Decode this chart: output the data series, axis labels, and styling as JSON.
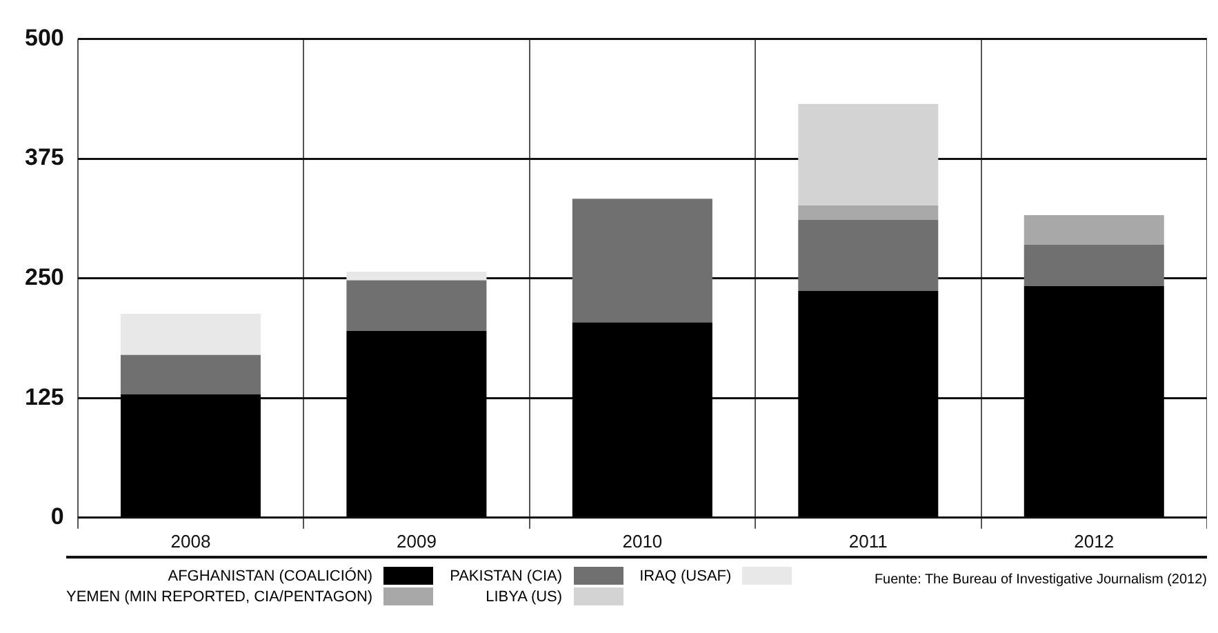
{
  "chart_data": {
    "type": "bar",
    "stacked": true,
    "categories": [
      "2008",
      "2009",
      "2010",
      "2011",
      "2012"
    ],
    "series": [
      {
        "name": "AFGHANISTAN (COALICIÓN)",
        "color": "#000000",
        "values": [
          129,
          195,
          204,
          237,
          242
        ]
      },
      {
        "name": "PAKISTAN (CIA)",
        "color": "#707070",
        "values": [
          41,
          53,
          129,
          74,
          43
        ]
      },
      {
        "name": "IRAQ (USAF)",
        "color": "#e8e8e8",
        "values": [
          43,
          9,
          null,
          null,
          null
        ]
      },
      {
        "name": "YEMEN (MIN REPORTED, CIA/PENTAGON)",
        "color": "#a8a8a8",
        "values": [
          null,
          null,
          null,
          15,
          31
        ]
      },
      {
        "name": "LIBYA (US)",
        "color": "#d3d3d3",
        "values": [
          null,
          null,
          null,
          106,
          null
        ]
      }
    ],
    "ylim": [
      0,
      500
    ],
    "yticks": [
      0,
      125,
      250,
      375,
      500
    ],
    "grid": true,
    "legend": "bottom",
    "annotations": [
      "Fuente: The Bureau of Investigative Journalism (2012)"
    ]
  }
}
